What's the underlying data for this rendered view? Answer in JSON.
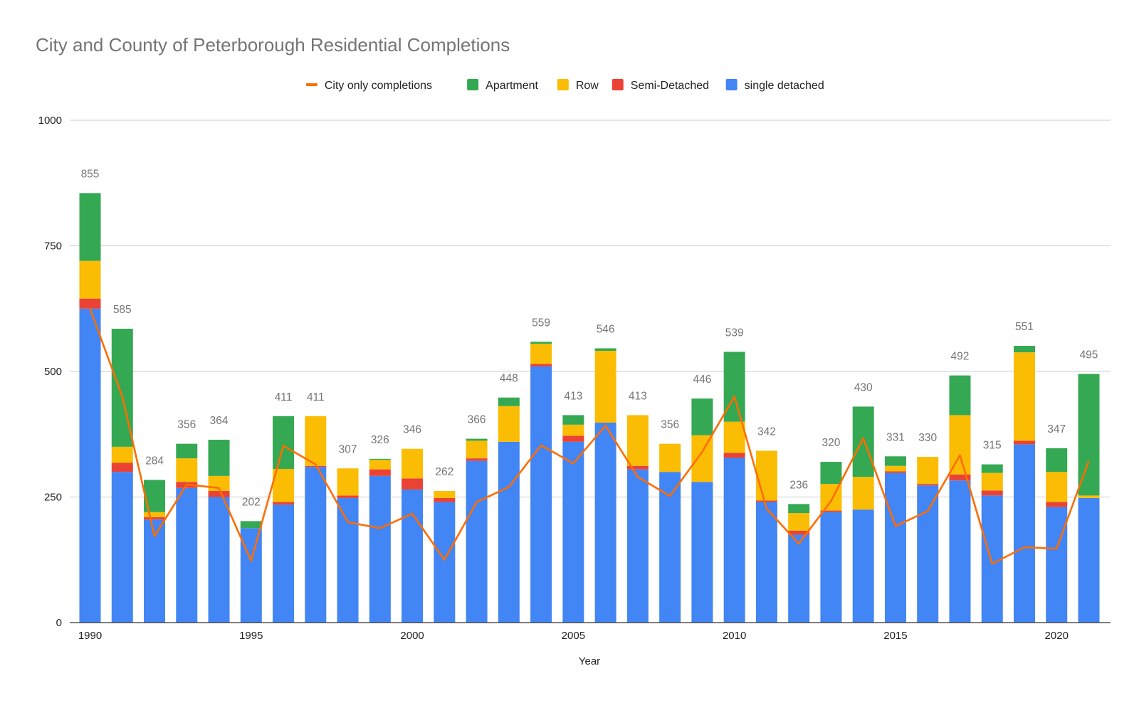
{
  "chart_data": {
    "type": "bar",
    "title": "City and County of Peterborough Residential Completions",
    "xlabel": "Year",
    "ylabel": "",
    "ylim": [
      0,
      1000
    ],
    "yticks": [
      0,
      250,
      500,
      750,
      1000
    ],
    "xticks": [
      "1990",
      "1995",
      "2000",
      "2005",
      "2010",
      "2015",
      "2020"
    ],
    "grid": true,
    "legend_position": "top",
    "legend_order": [
      "City only completions",
      "Apartment",
      "Row",
      "Semi-Detached",
      "single detached"
    ],
    "categories": [
      1990,
      1991,
      1992,
      1993,
      1994,
      1995,
      1996,
      1997,
      1998,
      1999,
      2000,
      2001,
      2002,
      2003,
      2004,
      2005,
      2006,
      2007,
      2008,
      2009,
      2010,
      2011,
      2012,
      2013,
      2014,
      2015,
      2016,
      2017,
      2018,
      2019,
      2020,
      2021
    ],
    "totals": [
      855,
      585,
      284,
      356,
      364,
      202,
      411,
      411,
      307,
      326,
      346,
      262,
      366,
      448,
      559,
      413,
      546,
      413,
      356,
      446,
      539,
      342,
      236,
      320,
      430,
      331,
      330,
      492,
      315,
      551,
      347,
      495
    ],
    "series": [
      {
        "name": "single detached",
        "color": "#4285f4",
        "values": [
          625,
          300,
          205,
          268,
          250,
          188,
          235,
          310,
          248,
          292,
          265,
          240,
          322,
          360,
          510,
          360,
          398,
          305,
          300,
          280,
          328,
          240,
          175,
          220,
          225,
          298,
          273,
          283,
          253,
          355,
          230,
          248
        ]
      },
      {
        "name": "Semi-Detached",
        "color": "#ea4335",
        "values": [
          20,
          18,
          5,
          12,
          12,
          0,
          5,
          2,
          5,
          13,
          22,
          8,
          5,
          0,
          5,
          12,
          0,
          7,
          0,
          0,
          10,
          3,
          8,
          3,
          0,
          3,
          3,
          12,
          10,
          7,
          10,
          0
        ]
      },
      {
        "name": "Row",
        "color": "#fbbc04",
        "values": [
          75,
          32,
          10,
          47,
          30,
          0,
          66,
          99,
          54,
          19,
          59,
          14,
          35,
          71,
          40,
          22,
          143,
          101,
          56,
          93,
          62,
          99,
          35,
          53,
          65,
          11,
          54,
          118,
          35,
          176,
          60,
          5
        ]
      },
      {
        "name": "Apartment",
        "color": "#34a853",
        "values": [
          135,
          235,
          64,
          29,
          72,
          14,
          105,
          0,
          0,
          2,
          0,
          0,
          4,
          17,
          4,
          19,
          5,
          0,
          0,
          73,
          139,
          0,
          18,
          44,
          140,
          19,
          0,
          79,
          17,
          13,
          47,
          242
        ]
      }
    ],
    "line_series": {
      "name": "City only completions",
      "color": "#ff6d01",
      "values": [
        625,
        450,
        172,
        275,
        268,
        123,
        352,
        315,
        200,
        188,
        217,
        125,
        240,
        270,
        353,
        317,
        392,
        290,
        252,
        340,
        450,
        227,
        157,
        242,
        367,
        192,
        222,
        333,
        117,
        150,
        147,
        322
      ]
    }
  }
}
